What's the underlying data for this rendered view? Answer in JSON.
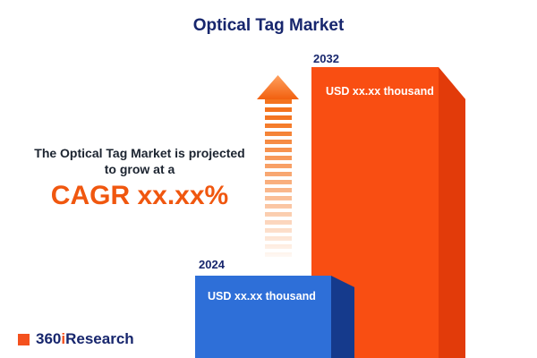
{
  "title": "Optical Tag Market",
  "projection": {
    "line1": "The Optical Tag Market is projected",
    "line2": "to grow at a",
    "cagr": "CAGR xx.xx%"
  },
  "chart_data": {
    "type": "bar",
    "title": "Optical Tag Market",
    "categories": [
      "2024",
      "2032"
    ],
    "values": [
      "xx.xx",
      "xx.xx"
    ],
    "value_unit": "USD thousand",
    "value_labels": [
      "USD xx.xx thousand",
      "USD xx.xx thousand"
    ],
    "relative_heights": [
      0.28,
      1.0
    ],
    "xlabel": "",
    "ylabel": "",
    "legend": false,
    "grid": false,
    "bar_colors": [
      "#2e6fd8",
      "#f94e12"
    ]
  },
  "logo": {
    "part1": "360",
    "part2": "i",
    "part3": "Research"
  },
  "colors": {
    "navy": "#17266d",
    "accent_orange": "#f4511e",
    "bar_orange_front": "#f94e12",
    "bar_orange_side": "#e23b0a",
    "bar_blue_front": "#2e6fd8",
    "bar_blue_side": "#153a8c",
    "text_dark": "#1c2430"
  }
}
